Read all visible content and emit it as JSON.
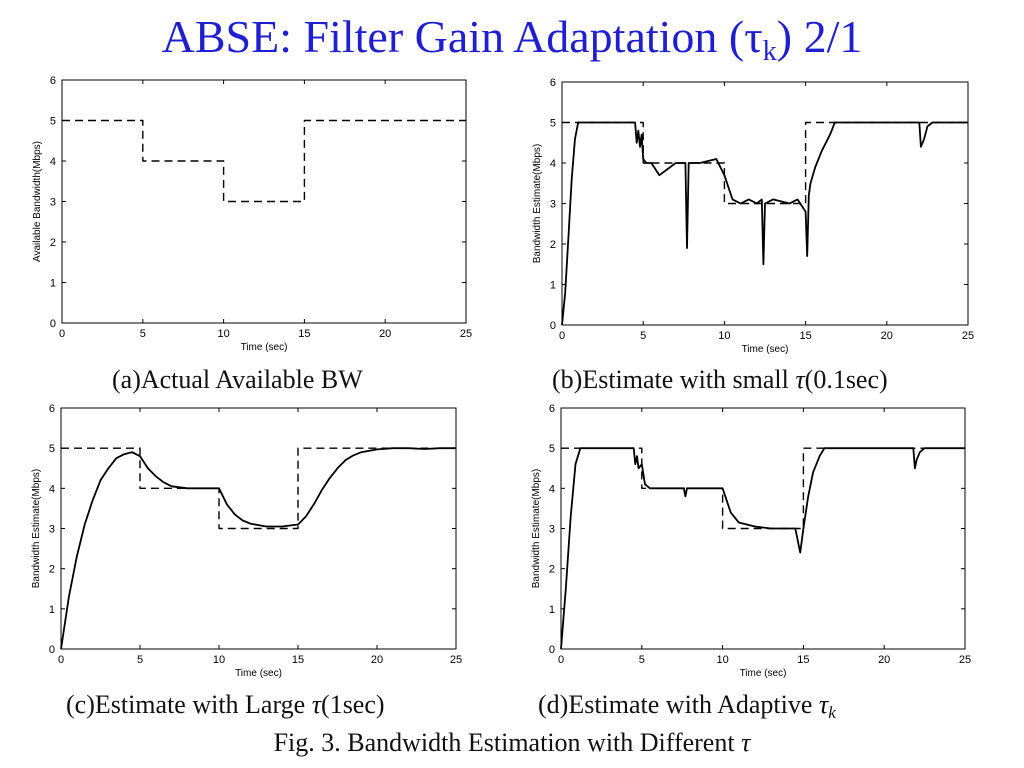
{
  "slide": {
    "title_main": "ABSE: Filter Gain Adaptation (",
    "title_symbol": "τ",
    "title_sub": "k",
    "title_tail": ")  2/1",
    "figure_caption_text": "Fig. 3. Bandwidth Estimation with Different ",
    "figure_caption_symbol": "τ"
  },
  "panels": [
    {
      "caption_text": "(a)Actual Available BW",
      "caption_symbol": "",
      "caption_sub": "",
      "caption_tail": ""
    },
    {
      "caption_text": "(b)Estimate with small ",
      "caption_symbol": "τ",
      "caption_sub": "",
      "caption_tail": "(0.1sec)"
    },
    {
      "caption_text": "(c)Estimate with Large ",
      "caption_symbol": "τ",
      "caption_sub": "",
      "caption_tail": "(1sec)"
    },
    {
      "caption_text": "(d)Estimate with Adaptive ",
      "caption_symbol": "τ",
      "caption_sub": "k",
      "caption_tail": ""
    }
  ],
  "chart_data": [
    {
      "type": "line",
      "xlabel": "Time (sec)",
      "ylabel": "Available Bandwidth(Mbps)",
      "xlim": [
        0,
        25
      ],
      "ylim": [
        0,
        6
      ],
      "xticks": [
        0,
        5,
        10,
        15,
        20,
        25
      ],
      "yticks": [
        0,
        1,
        2,
        3,
        4,
        5,
        6
      ],
      "grid": false,
      "series": [
        {
          "style": "dashed",
          "color": "#000000",
          "x": [
            0,
            5,
            5,
            10,
            10,
            15,
            15,
            25
          ],
          "y": [
            5,
            5,
            4,
            4,
            3,
            3,
            5,
            5
          ]
        }
      ]
    },
    {
      "type": "line",
      "xlabel": "Time (sec)",
      "ylabel": "Bandwidth Estimate(Mbps)",
      "xlim": [
        0,
        25
      ],
      "ylim": [
        0,
        6
      ],
      "xticks": [
        0,
        5,
        10,
        15,
        20,
        25
      ],
      "yticks": [
        0,
        1,
        2,
        3,
        4,
        5,
        6
      ],
      "grid": false,
      "series": [
        {
          "style": "dashed",
          "color": "#000000",
          "x": [
            0,
            5,
            5,
            10,
            10,
            15,
            15,
            25
          ],
          "y": [
            5,
            5,
            4,
            4,
            3,
            3,
            5,
            5
          ]
        },
        {
          "style": "solid",
          "color": "#000000",
          "x": [
            0,
            0.2,
            0.4,
            0.6,
            0.8,
            1.0,
            4.5,
            4.6,
            4.7,
            4.8,
            4.9,
            5.0,
            5.2,
            5.5,
            6.0,
            7.0,
            7.6,
            7.7,
            7.8,
            8.5,
            9.5,
            10.0,
            10.5,
            11.0,
            11.5,
            12.0,
            12.3,
            12.4,
            12.5,
            13.0,
            14.0,
            14.5,
            15.0,
            15.1,
            15.2,
            15.3,
            15.6,
            16.0,
            16.5,
            16.8,
            22.0,
            22.1,
            22.3,
            22.5,
            22.8,
            25.0
          ],
          "y": [
            0,
            0.8,
            2.2,
            3.6,
            4.6,
            5.0,
            5.0,
            4.5,
            4.8,
            4.4,
            4.7,
            4.1,
            4.0,
            4.0,
            3.7,
            4.0,
            4.0,
            1.9,
            4.0,
            4.0,
            4.1,
            3.7,
            3.1,
            3.0,
            3.1,
            3.0,
            3.1,
            1.5,
            3.0,
            3.1,
            3.0,
            3.1,
            2.8,
            1.7,
            3.2,
            3.5,
            3.9,
            4.3,
            4.7,
            5.0,
            5.0,
            4.4,
            4.6,
            4.9,
            5.0,
            5.0
          ]
        }
      ]
    },
    {
      "type": "line",
      "xlabel": "Time (sec)",
      "ylabel": "Bandwidth Estimate(Mbps)",
      "xlim": [
        0,
        25
      ],
      "ylim": [
        0,
        6
      ],
      "xticks": [
        0,
        5,
        10,
        15,
        20,
        25
      ],
      "yticks": [
        0,
        1,
        2,
        3,
        4,
        5,
        6
      ],
      "grid": false,
      "series": [
        {
          "style": "dashed",
          "color": "#000000",
          "x": [
            0,
            5,
            5,
            10,
            10,
            15,
            15,
            25
          ],
          "y": [
            5,
            5,
            4,
            4,
            3,
            3,
            5,
            5
          ]
        },
        {
          "style": "solid",
          "color": "#000000",
          "x": [
            0,
            0.5,
            1.0,
            1.5,
            2.0,
            2.5,
            3.0,
            3.5,
            4.0,
            4.5,
            5.0,
            5.5,
            6.0,
            6.5,
            7.0,
            8.0,
            9.0,
            10.0,
            10.5,
            11.0,
            11.5,
            12.0,
            13.0,
            14.0,
            15.0,
            15.5,
            16.0,
            16.5,
            17.0,
            17.5,
            18.0,
            18.5,
            19.0,
            20.0,
            21.0,
            22.0,
            23.0,
            24.0,
            25.0
          ],
          "y": [
            0,
            1.3,
            2.3,
            3.1,
            3.7,
            4.2,
            4.5,
            4.75,
            4.85,
            4.9,
            4.8,
            4.5,
            4.3,
            4.15,
            4.05,
            4.0,
            4.0,
            4.0,
            3.6,
            3.35,
            3.2,
            3.12,
            3.05,
            3.05,
            3.1,
            3.3,
            3.6,
            3.95,
            4.25,
            4.5,
            4.7,
            4.82,
            4.9,
            4.97,
            5.0,
            5.0,
            4.98,
            5.0,
            5.0
          ]
        }
      ]
    },
    {
      "type": "line",
      "xlabel": "Time (sec)",
      "ylabel": "Bandwidth Estimate(Mbps)",
      "xlim": [
        0,
        25
      ],
      "ylim": [
        0,
        6
      ],
      "xticks": [
        0,
        5,
        10,
        15,
        20,
        25
      ],
      "yticks": [
        0,
        1,
        2,
        3,
        4,
        5,
        6
      ],
      "grid": false,
      "series": [
        {
          "style": "dashed",
          "color": "#000000",
          "x": [
            0,
            5,
            5,
            10,
            10,
            15,
            15,
            25
          ],
          "y": [
            5,
            5,
            4,
            4,
            3,
            3,
            5,
            5
          ]
        },
        {
          "style": "solid",
          "color": "#000000",
          "x": [
            0,
            0.3,
            0.6,
            0.9,
            1.2,
            4.5,
            4.6,
            4.7,
            4.8,
            5.0,
            5.2,
            5.5,
            6.0,
            7.0,
            7.6,
            7.7,
            7.8,
            9.0,
            10.0,
            10.5,
            11.0,
            12.0,
            13.0,
            14.0,
            14.5,
            14.8,
            15.0,
            15.3,
            15.6,
            16.0,
            16.3,
            21.8,
            21.9,
            22.0,
            22.2,
            22.5,
            25.0
          ],
          "y": [
            0,
            1.5,
            3.3,
            4.6,
            5.0,
            5.0,
            4.6,
            4.8,
            4.5,
            4.6,
            4.1,
            4.0,
            4.0,
            4.0,
            4.0,
            3.8,
            4.0,
            4.0,
            4.0,
            3.4,
            3.15,
            3.05,
            3.0,
            3.0,
            3.0,
            2.4,
            3.0,
            3.8,
            4.4,
            4.8,
            5.0,
            5.0,
            4.5,
            4.7,
            4.9,
            5.0,
            5.0
          ]
        }
      ]
    }
  ]
}
